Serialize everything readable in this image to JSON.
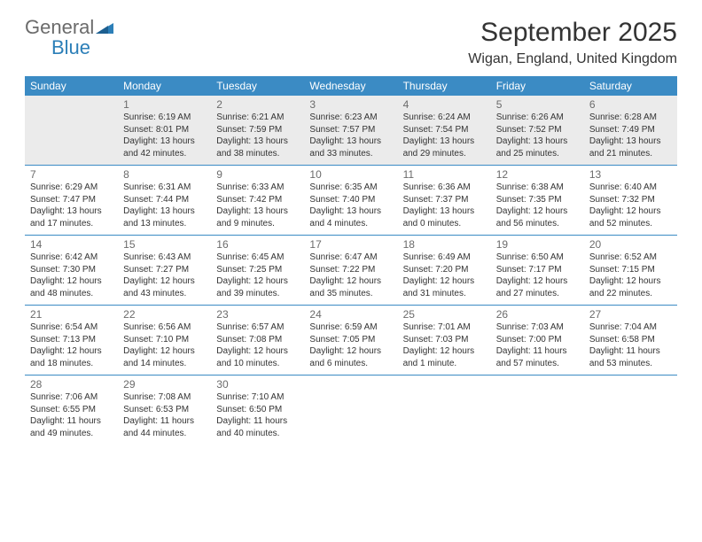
{
  "logo": {
    "text1": "General",
    "text2": "Blue"
  },
  "title": "September 2025",
  "location": "Wigan, England, United Kingdom",
  "colors": {
    "header_bg": "#3b8bc4",
    "header_text": "#ffffff",
    "shaded_bg": "#ebebeb",
    "cell_bg": "#ffffff",
    "rule": "#3b8bc4",
    "daynum": "#6b6b6b",
    "text": "#333333",
    "logo_gray": "#6b6b6b",
    "logo_blue": "#2c7fb8"
  },
  "dayNames": [
    "Sunday",
    "Monday",
    "Tuesday",
    "Wednesday",
    "Thursday",
    "Friday",
    "Saturday"
  ],
  "weeks": [
    [
      {
        "num": "",
        "sunrise": "",
        "sunset": "",
        "daylight": "",
        "shaded": true
      },
      {
        "num": "1",
        "sunrise": "Sunrise: 6:19 AM",
        "sunset": "Sunset: 8:01 PM",
        "daylight": "Daylight: 13 hours and 42 minutes.",
        "shaded": true
      },
      {
        "num": "2",
        "sunrise": "Sunrise: 6:21 AM",
        "sunset": "Sunset: 7:59 PM",
        "daylight": "Daylight: 13 hours and 38 minutes.",
        "shaded": true
      },
      {
        "num": "3",
        "sunrise": "Sunrise: 6:23 AM",
        "sunset": "Sunset: 7:57 PM",
        "daylight": "Daylight: 13 hours and 33 minutes.",
        "shaded": true
      },
      {
        "num": "4",
        "sunrise": "Sunrise: 6:24 AM",
        "sunset": "Sunset: 7:54 PM",
        "daylight": "Daylight: 13 hours and 29 minutes.",
        "shaded": true
      },
      {
        "num": "5",
        "sunrise": "Sunrise: 6:26 AM",
        "sunset": "Sunset: 7:52 PM",
        "daylight": "Daylight: 13 hours and 25 minutes.",
        "shaded": true
      },
      {
        "num": "6",
        "sunrise": "Sunrise: 6:28 AM",
        "sunset": "Sunset: 7:49 PM",
        "daylight": "Daylight: 13 hours and 21 minutes.",
        "shaded": true
      }
    ],
    [
      {
        "num": "7",
        "sunrise": "Sunrise: 6:29 AM",
        "sunset": "Sunset: 7:47 PM",
        "daylight": "Daylight: 13 hours and 17 minutes.",
        "shaded": false
      },
      {
        "num": "8",
        "sunrise": "Sunrise: 6:31 AM",
        "sunset": "Sunset: 7:44 PM",
        "daylight": "Daylight: 13 hours and 13 minutes.",
        "shaded": false
      },
      {
        "num": "9",
        "sunrise": "Sunrise: 6:33 AM",
        "sunset": "Sunset: 7:42 PM",
        "daylight": "Daylight: 13 hours and 9 minutes.",
        "shaded": false
      },
      {
        "num": "10",
        "sunrise": "Sunrise: 6:35 AM",
        "sunset": "Sunset: 7:40 PM",
        "daylight": "Daylight: 13 hours and 4 minutes.",
        "shaded": false
      },
      {
        "num": "11",
        "sunrise": "Sunrise: 6:36 AM",
        "sunset": "Sunset: 7:37 PM",
        "daylight": "Daylight: 13 hours and 0 minutes.",
        "shaded": false
      },
      {
        "num": "12",
        "sunrise": "Sunrise: 6:38 AM",
        "sunset": "Sunset: 7:35 PM",
        "daylight": "Daylight: 12 hours and 56 minutes.",
        "shaded": false
      },
      {
        "num": "13",
        "sunrise": "Sunrise: 6:40 AM",
        "sunset": "Sunset: 7:32 PM",
        "daylight": "Daylight: 12 hours and 52 minutes.",
        "shaded": false
      }
    ],
    [
      {
        "num": "14",
        "sunrise": "Sunrise: 6:42 AM",
        "sunset": "Sunset: 7:30 PM",
        "daylight": "Daylight: 12 hours and 48 minutes.",
        "shaded": false
      },
      {
        "num": "15",
        "sunrise": "Sunrise: 6:43 AM",
        "sunset": "Sunset: 7:27 PM",
        "daylight": "Daylight: 12 hours and 43 minutes.",
        "shaded": false
      },
      {
        "num": "16",
        "sunrise": "Sunrise: 6:45 AM",
        "sunset": "Sunset: 7:25 PM",
        "daylight": "Daylight: 12 hours and 39 minutes.",
        "shaded": false
      },
      {
        "num": "17",
        "sunrise": "Sunrise: 6:47 AM",
        "sunset": "Sunset: 7:22 PM",
        "daylight": "Daylight: 12 hours and 35 minutes.",
        "shaded": false
      },
      {
        "num": "18",
        "sunrise": "Sunrise: 6:49 AM",
        "sunset": "Sunset: 7:20 PM",
        "daylight": "Daylight: 12 hours and 31 minutes.",
        "shaded": false
      },
      {
        "num": "19",
        "sunrise": "Sunrise: 6:50 AM",
        "sunset": "Sunset: 7:17 PM",
        "daylight": "Daylight: 12 hours and 27 minutes.",
        "shaded": false
      },
      {
        "num": "20",
        "sunrise": "Sunrise: 6:52 AM",
        "sunset": "Sunset: 7:15 PM",
        "daylight": "Daylight: 12 hours and 22 minutes.",
        "shaded": false
      }
    ],
    [
      {
        "num": "21",
        "sunrise": "Sunrise: 6:54 AM",
        "sunset": "Sunset: 7:13 PM",
        "daylight": "Daylight: 12 hours and 18 minutes.",
        "shaded": false
      },
      {
        "num": "22",
        "sunrise": "Sunrise: 6:56 AM",
        "sunset": "Sunset: 7:10 PM",
        "daylight": "Daylight: 12 hours and 14 minutes.",
        "shaded": false
      },
      {
        "num": "23",
        "sunrise": "Sunrise: 6:57 AM",
        "sunset": "Sunset: 7:08 PM",
        "daylight": "Daylight: 12 hours and 10 minutes.",
        "shaded": false
      },
      {
        "num": "24",
        "sunrise": "Sunrise: 6:59 AM",
        "sunset": "Sunset: 7:05 PM",
        "daylight": "Daylight: 12 hours and 6 minutes.",
        "shaded": false
      },
      {
        "num": "25",
        "sunrise": "Sunrise: 7:01 AM",
        "sunset": "Sunset: 7:03 PM",
        "daylight": "Daylight: 12 hours and 1 minute.",
        "shaded": false
      },
      {
        "num": "26",
        "sunrise": "Sunrise: 7:03 AM",
        "sunset": "Sunset: 7:00 PM",
        "daylight": "Daylight: 11 hours and 57 minutes.",
        "shaded": false
      },
      {
        "num": "27",
        "sunrise": "Sunrise: 7:04 AM",
        "sunset": "Sunset: 6:58 PM",
        "daylight": "Daylight: 11 hours and 53 minutes.",
        "shaded": false
      }
    ],
    [
      {
        "num": "28",
        "sunrise": "Sunrise: 7:06 AM",
        "sunset": "Sunset: 6:55 PM",
        "daylight": "Daylight: 11 hours and 49 minutes.",
        "shaded": false
      },
      {
        "num": "29",
        "sunrise": "Sunrise: 7:08 AM",
        "sunset": "Sunset: 6:53 PM",
        "daylight": "Daylight: 11 hours and 44 minutes.",
        "shaded": false
      },
      {
        "num": "30",
        "sunrise": "Sunrise: 7:10 AM",
        "sunset": "Sunset: 6:50 PM",
        "daylight": "Daylight: 11 hours and 40 minutes.",
        "shaded": false
      },
      {
        "num": "",
        "sunrise": "",
        "sunset": "",
        "daylight": "",
        "shaded": false
      },
      {
        "num": "",
        "sunrise": "",
        "sunset": "",
        "daylight": "",
        "shaded": false
      },
      {
        "num": "",
        "sunrise": "",
        "sunset": "",
        "daylight": "",
        "shaded": false
      },
      {
        "num": "",
        "sunrise": "",
        "sunset": "",
        "daylight": "",
        "shaded": false
      }
    ]
  ]
}
